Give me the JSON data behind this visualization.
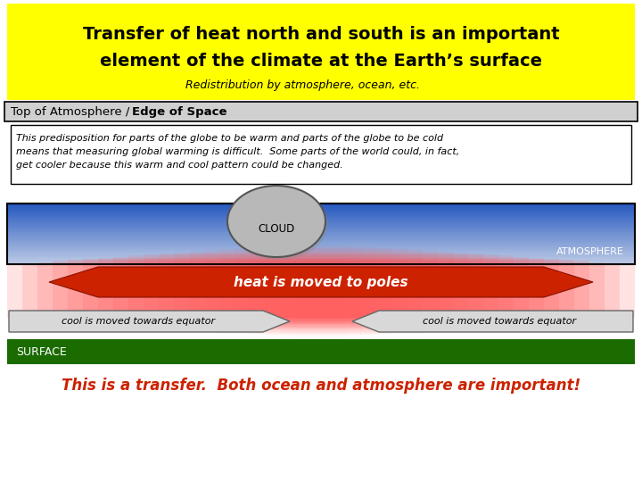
{
  "title_line1": "Transfer of heat north and south is an important",
  "title_line2": "element of the climate at the Earth’s surface",
  "subtitle": "Redistribution by atmosphere, ocean, etc.",
  "toa_label_normal": "Top of Atmosphere / ",
  "toa_label_bold": "Edge of Space",
  "body_text_line1": "This predisposition for parts of the globe to be warm and parts of the globe to be cold",
  "body_text_line2": "means that measuring global warming is difficult.  Some parts of the world could, in fact,",
  "body_text_line3": "get cooler because this warm and cool pattern could be changed.",
  "cloud_label": "CLOUD",
  "atm_label": "ATMOSPHERE",
  "arrow_label": "heat is moved to poles",
  "cool_left": "cool is moved towards equator",
  "cool_right": "cool is moved towards equator",
  "surface_label": "SURFACE",
  "footer": "This is a transfer.  Both ocean and atmosphere are important!",
  "bg_color": "#ffffff",
  "title_bg": "#ffff00",
  "toa_bg": "#d0d0d0",
  "surface_bar": "#1a6b00",
  "arrow_color": "#cc2200",
  "footer_color": "#cc2200",
  "cloud_color": "#b8b8b8"
}
